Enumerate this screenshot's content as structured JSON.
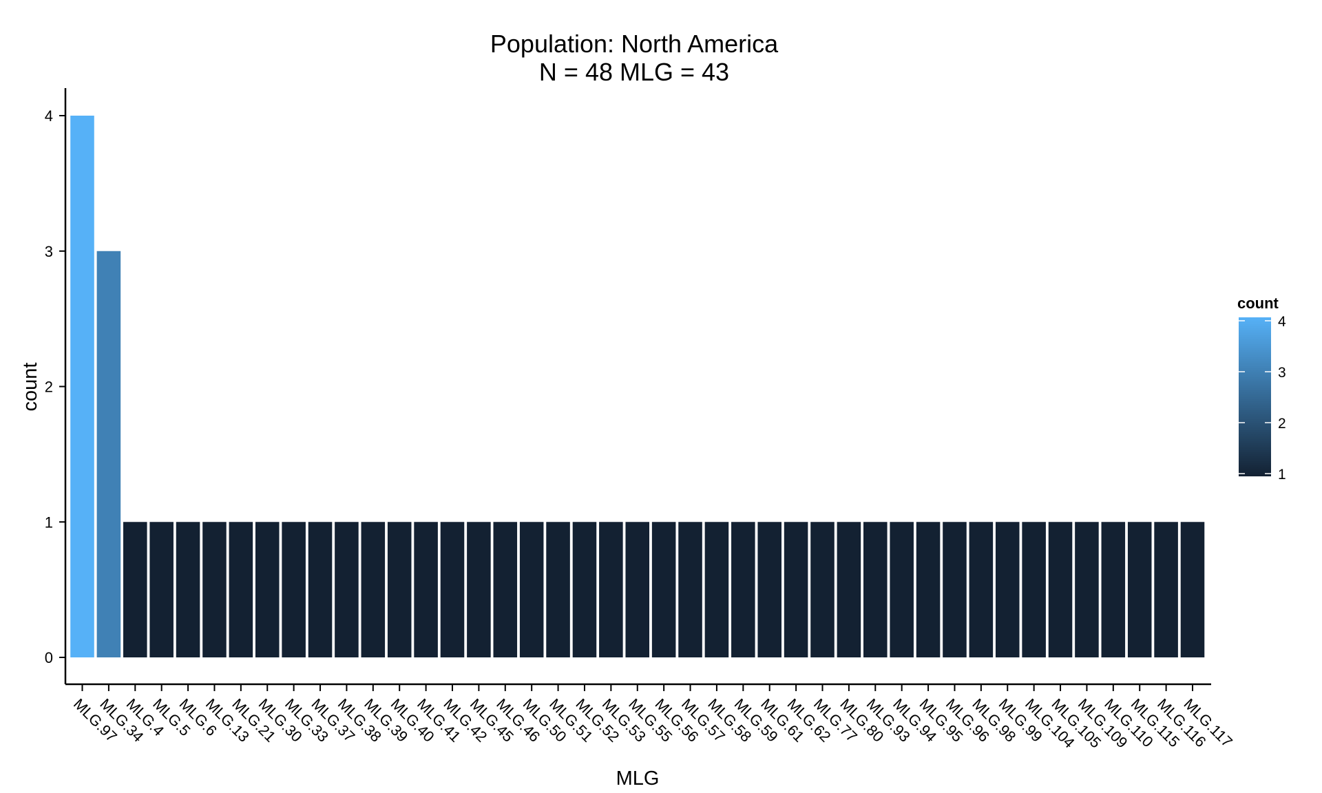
{
  "chart_data": {
    "type": "bar",
    "title_line1": "Population: North America",
    "title_line2": "N = 48 MLG = 43",
    "xlabel": "MLG",
    "ylabel": "count",
    "ylim": [
      0,
      4
    ],
    "yticks": [
      "0",
      "1",
      "2",
      "3",
      "4"
    ],
    "categories": [
      "MLG.97",
      "MLG.34",
      "MLG.4",
      "MLG.5",
      "MLG.6",
      "MLG.13",
      "MLG.21",
      "MLG.30",
      "MLG.33",
      "MLG.37",
      "MLG.38",
      "MLG.39",
      "MLG.40",
      "MLG.41",
      "MLG.42",
      "MLG.45",
      "MLG.46",
      "MLG.50",
      "MLG.51",
      "MLG.52",
      "MLG.53",
      "MLG.55",
      "MLG.56",
      "MLG.57",
      "MLG.58",
      "MLG.59",
      "MLG.61",
      "MLG.62",
      "MLG.77",
      "MLG.80",
      "MLG.93",
      "MLG.94",
      "MLG.95",
      "MLG.96",
      "MLG.98",
      "MLG.99",
      "MLG.104",
      "MLG.105",
      "MLG.109",
      "MLG.110",
      "MLG.115",
      "MLG.116",
      "MLG.117"
    ],
    "values": [
      4,
      3,
      1,
      1,
      1,
      1,
      1,
      1,
      1,
      1,
      1,
      1,
      1,
      1,
      1,
      1,
      1,
      1,
      1,
      1,
      1,
      1,
      1,
      1,
      1,
      1,
      1,
      1,
      1,
      1,
      1,
      1,
      1,
      1,
      1,
      1,
      1,
      1,
      1,
      1,
      1,
      1,
      1
    ],
    "legend": {
      "title": "count",
      "labels": [
        "4",
        "3",
        "2",
        "1"
      ],
      "position": "right",
      "color_low": "#132132",
      "color_high": "#56B1F7"
    },
    "grid": false
  }
}
